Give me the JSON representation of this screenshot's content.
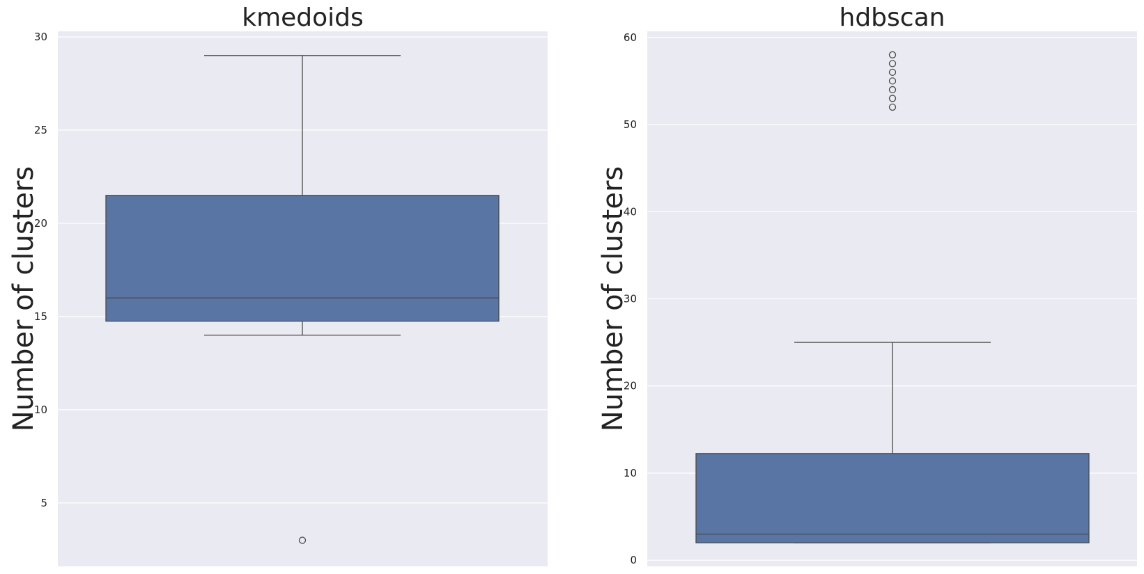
{
  "chart_data": [
    {
      "type": "box",
      "title": "kmedoids",
      "xlabel": "",
      "ylabel": "Number of clusters",
      "ylim": [
        1.6,
        30.3
      ],
      "yticks": [
        5,
        10,
        15,
        20,
        25,
        30
      ],
      "grid": true,
      "box": {
        "whisker_low": 14,
        "q1": 14.75,
        "median": 16,
        "q3": 21.5,
        "whisker_high": 29,
        "outliers": [
          3
        ]
      },
      "colors": {
        "box": "#5975a4",
        "edge": "#4a4a4a",
        "background": "#eaeaf2",
        "grid": "#ffffff"
      }
    },
    {
      "type": "box",
      "title": "hdbscan",
      "xlabel": "",
      "ylabel": "Number of clusters",
      "ylim": [
        -0.7,
        60.7
      ],
      "yticks": [
        0,
        10,
        20,
        30,
        40,
        50,
        60
      ],
      "grid": true,
      "box": {
        "whisker_low": 2,
        "q1": 2,
        "median": 3,
        "q3": 12.25,
        "whisker_high": 25,
        "outliers": [
          52,
          53,
          54,
          55,
          56,
          57,
          58
        ]
      },
      "colors": {
        "box": "#5975a4",
        "edge": "#4a4a4a",
        "background": "#eaeaf2",
        "grid": "#ffffff"
      }
    }
  ]
}
